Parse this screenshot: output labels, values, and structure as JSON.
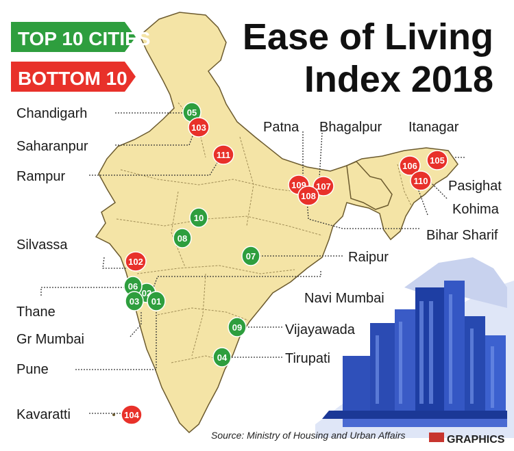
{
  "title": {
    "line1": "Ease of Living",
    "line2": "Index 2018"
  },
  "legend": {
    "top_label": "TOP 10 CITIES",
    "bottom_label": "BOTTOM 10",
    "top_color": "#2e9e3e",
    "bottom_color": "#e8312a"
  },
  "map": {
    "land_color": "#f4e4a6",
    "border_color": "#6b5a2e",
    "sea_color": "#ffffff"
  },
  "cities": [
    {
      "name": "Chandigarh",
      "badge": "05",
      "group": "top"
    },
    {
      "name": "Saharanpur",
      "badge": "103",
      "group": "bottom"
    },
    {
      "name": "Rampur",
      "badge": "111",
      "group": "bottom"
    },
    {
      "name": "Patna",
      "badge": "109",
      "group": "bottom"
    },
    {
      "name": "Bhagalpur",
      "badge": "107",
      "group": "bottom"
    },
    {
      "name": "Bihar Sharif",
      "badge": "108",
      "group": "bottom"
    },
    {
      "name": "Itanagar",
      "badge": "106",
      "group": "bottom"
    },
    {
      "name": "Pasighat",
      "badge": "105",
      "group": "bottom"
    },
    {
      "name": "Kohima",
      "badge": "110",
      "group": "bottom"
    },
    {
      "name": "Silvassa",
      "badge": "102",
      "group": "bottom"
    },
    {
      "name": "Raipur",
      "badge": "07",
      "group": "top"
    },
    {
      "name": "Navi Mumbai",
      "badge": "02",
      "group": "top"
    },
    {
      "name": "Thane",
      "badge": "06",
      "group": "top"
    },
    {
      "name": "Gr Mumbai",
      "badge": "03",
      "group": "top"
    },
    {
      "name": "Pune",
      "badge": "01",
      "group": "top"
    },
    {
      "name": "Vijayawada",
      "badge": "09",
      "group": "top"
    },
    {
      "name": "Tirupati",
      "badge": "04",
      "group": "top"
    },
    {
      "name": "Kavaratti",
      "badge": "104",
      "group": "bottom"
    }
  ],
  "unlabeled_badges": [
    {
      "badge": "10",
      "group": "top"
    },
    {
      "badge": "08",
      "group": "top"
    }
  ],
  "source": "Source: Ministry of Housing and Urban Affairs",
  "credit": "GRAPHICS"
}
